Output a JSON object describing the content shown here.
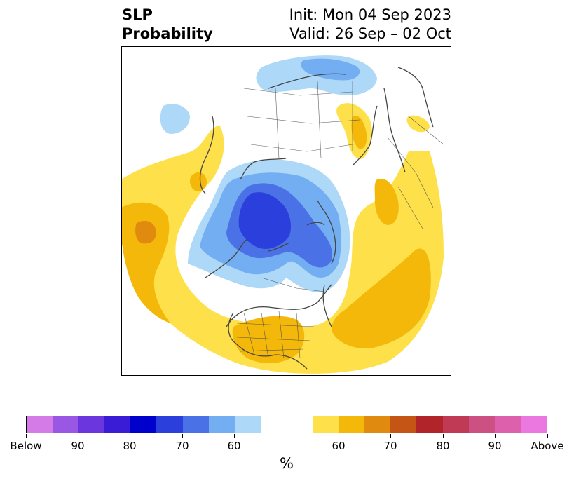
{
  "title": {
    "left_line1": "SLP",
    "left_line2": "Probability",
    "right_line1": "Init: Mon 04 Sep 2023",
    "right_line2": "Valid: 26 Sep – 02 Oct"
  },
  "colorbar": {
    "unit_label": "%",
    "tick_labels": [
      "Below",
      "90",
      "80",
      "70",
      "60",
      "60",
      "70",
      "80",
      "90",
      "Above"
    ],
    "colors": [
      "#d57be8",
      "#9a57e4",
      "#6b36de",
      "#3a1bd6",
      "#0000cc",
      "#2a3fdc",
      "#4a72e6",
      "#74aef2",
      "#aed8f8",
      "#ffffff",
      "#ffffff",
      "#fee14a",
      "#f4b80b",
      "#e08a10",
      "#c55514",
      "#b0242a",
      "#c03a55",
      "#cc5082",
      "#dc60ac",
      "#ea78e0"
    ]
  },
  "map": {
    "projection": "north-polar-stereographic",
    "variable": "sea-level-pressure-probability",
    "below_colors": {
      "c50": "#aed8f8",
      "c60": "#74aef2",
      "c70": "#4a72e6",
      "c80": "#2a3fdc"
    },
    "above_colors": {
      "c50": "#fee14a",
      "c60": "#f4b80b",
      "c70": "#e08a10"
    },
    "border_color": "#444444"
  }
}
